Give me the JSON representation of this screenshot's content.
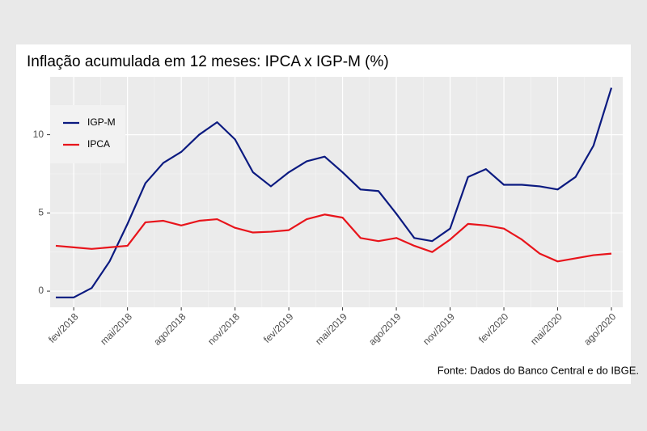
{
  "chart_data": {
    "type": "line",
    "title": "Inflação acumulada em 12 meses: IPCA x IGP-M (%)",
    "source": "Fonte: Dados do Banco Central e do IBGE.",
    "categories": [
      null,
      "fev/2018",
      null,
      null,
      "mai/2018",
      null,
      null,
      "ago/2018",
      null,
      null,
      "nov/2018",
      null,
      null,
      "fev/2019",
      null,
      null,
      "mai/2019",
      null,
      null,
      "ago/2019",
      null,
      null,
      "nov/2019",
      null,
      null,
      "fev/2020",
      null,
      null,
      "mai/2020",
      null,
      null,
      "ago/2020"
    ],
    "series": [
      {
        "name": "IGP-M",
        "color": "#0b1a80",
        "values": [
          -0.4,
          -0.4,
          0.2,
          1.9,
          4.3,
          6.9,
          8.2,
          8.9,
          10.0,
          10.8,
          9.7,
          7.6,
          6.7,
          7.6,
          8.3,
          8.6,
          7.6,
          6.5,
          6.4,
          4.95,
          3.4,
          3.2,
          4.0,
          7.3,
          7.8,
          6.8,
          6.8,
          6.7,
          6.5,
          7.3,
          9.3,
          13.0
        ]
      },
      {
        "name": "IPCA",
        "color": "#e8141b",
        "values": [
          2.9,
          2.8,
          2.7,
          2.8,
          2.9,
          4.4,
          4.5,
          4.2,
          4.5,
          4.6,
          4.05,
          3.75,
          3.8,
          3.9,
          4.6,
          4.9,
          4.7,
          3.4,
          3.2,
          3.4,
          2.9,
          2.5,
          3.3,
          4.3,
          4.2,
          4.0,
          3.3,
          2.4,
          1.9,
          2.1,
          2.3,
          2.4
        ]
      }
    ],
    "ylim": [
      -1.03,
      13.7
    ],
    "yticks": [
      0,
      5,
      10
    ],
    "grid": true,
    "legend": "top-left"
  }
}
